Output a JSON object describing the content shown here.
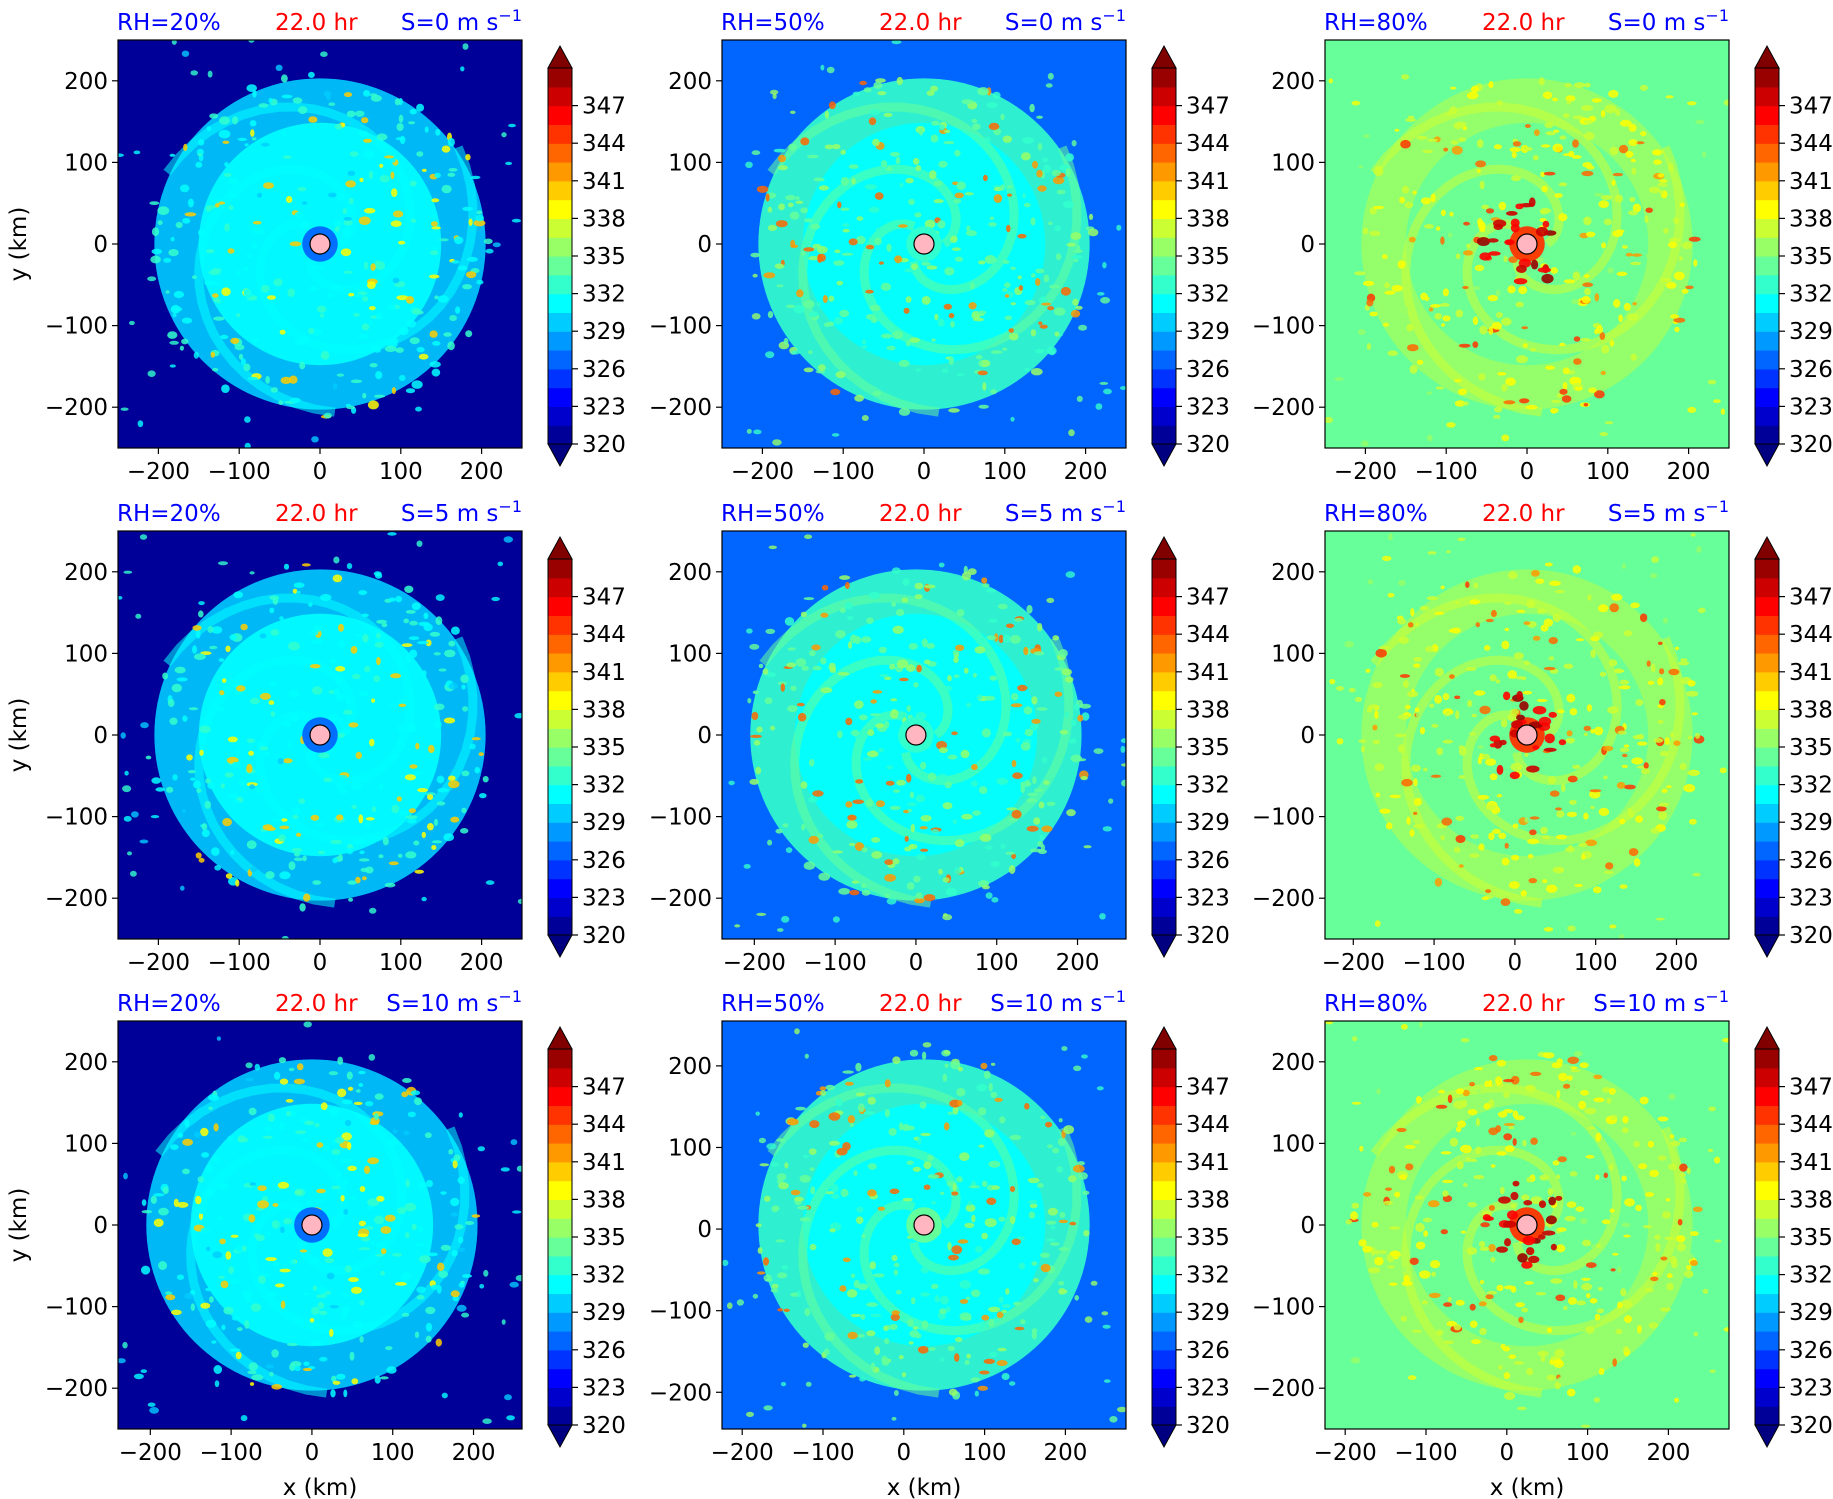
{
  "figure": {
    "colors": {
      "label_blue": "#0000ff",
      "label_red": "#ff0000",
      "center_marker_fill": "#ffb6c1"
    },
    "colormap": "jet",
    "colorbar": {
      "levels": [
        320,
        323,
        326,
        329,
        332,
        335,
        338,
        341,
        344,
        347
      ],
      "range": [
        320,
        350
      ],
      "extend": "both"
    },
    "xlabel": "x (km)",
    "ylabel": "y (km)"
  },
  "chart_data": [
    {
      "type": "heatmap",
      "rh_label": "RH=20%",
      "time_label": "22.0 hr",
      "shear_label": "S=0 m s",
      "shear_sup": "−1",
      "xlabel": "",
      "ylabel": "y (km)",
      "xlim": [
        -250,
        250
      ],
      "ylim": [
        -250,
        250
      ],
      "xticks": [
        -200,
        -100,
        0,
        100,
        200
      ],
      "yticks": [
        -200,
        -100,
        0,
        100,
        200
      ],
      "xtick_labels": [
        "−200",
        "−100",
        "0",
        "100",
        "200"
      ],
      "ytick_labels": [
        "−200",
        "−100",
        "0",
        "100",
        "200"
      ],
      "center": [
        0,
        0
      ],
      "background_value": 320,
      "ring_value": 329.5,
      "inner_value": 330.5,
      "core_value": 326,
      "hot_value": 338
    },
    {
      "type": "heatmap",
      "rh_label": "RH=50%",
      "time_label": "22.0 hr",
      "shear_label": "S=0 m s",
      "shear_sup": "−1",
      "xlabel": "",
      "ylabel": "",
      "xlim": [
        -250,
        250
      ],
      "ylim": [
        -250,
        250
      ],
      "xticks": [
        -200,
        -100,
        0,
        100,
        200
      ],
      "yticks": [
        -200,
        -100,
        0,
        100,
        200
      ],
      "xtick_labels": [
        "−200",
        "−100",
        "0",
        "100",
        "200"
      ],
      "ytick_labels": [
        "−200",
        "−100",
        "0",
        "100",
        "200"
      ],
      "center": [
        0,
        0
      ],
      "background_value": 326.5,
      "ring_value": 332,
      "inner_value": 331,
      "core_value": 332,
      "hot_value": 341
    },
    {
      "type": "heatmap",
      "rh_label": "RH=80%",
      "time_label": "22.0 hr",
      "shear_label": "S=0 m s",
      "shear_sup": "−1",
      "xlabel": "",
      "ylabel": "",
      "xlim": [
        -250,
        250
      ],
      "ylim": [
        -250,
        250
      ],
      "xticks": [
        -200,
        -100,
        0,
        100,
        200
      ],
      "yticks": [
        -200,
        -100,
        0,
        100,
        200
      ],
      "xtick_labels": [
        "−200",
        "−100",
        "0",
        "100",
        "200"
      ],
      "ytick_labels": [
        "−200",
        "−100",
        "0",
        "100",
        "200"
      ],
      "center": [
        0,
        0
      ],
      "background_value": 334,
      "ring_value": 335.5,
      "inner_value": 333.5,
      "core_value": 344,
      "hot_value": 342
    },
    {
      "type": "heatmap",
      "rh_label": "RH=20%",
      "time_label": "22.0 hr",
      "shear_label": "S=5 m s",
      "shear_sup": "−1",
      "xlabel": "",
      "ylabel": "y (km)",
      "xlim": [
        -250,
        250
      ],
      "ylim": [
        -250,
        250
      ],
      "xticks": [
        -200,
        -100,
        0,
        100,
        200
      ],
      "yticks": [
        -200,
        -100,
        0,
        100,
        200
      ],
      "xtick_labels": [
        "−200",
        "−100",
        "0",
        "100",
        "200"
      ],
      "ytick_labels": [
        "−200",
        "−100",
        "0",
        "100",
        "200"
      ],
      "center": [
        0,
        0
      ],
      "background_value": 320,
      "ring_value": 329.5,
      "inner_value": 330.5,
      "core_value": 326,
      "hot_value": 338
    },
    {
      "type": "heatmap",
      "rh_label": "RH=50%",
      "time_label": "22.0 hr",
      "shear_label": "S=5 m s",
      "shear_sup": "−1",
      "xlabel": "",
      "ylabel": "",
      "xlim": [
        -240,
        260
      ],
      "ylim": [
        -250,
        250
      ],
      "xticks": [
        -200,
        -100,
        0,
        100,
        200
      ],
      "yticks": [
        -200,
        -100,
        0,
        100,
        200
      ],
      "xtick_labels": [
        "−200",
        "−100",
        "0",
        "100",
        "200"
      ],
      "ytick_labels": [
        "−200",
        "−100",
        "0",
        "100",
        "200"
      ],
      "center": [
        0,
        0
      ],
      "background_value": 326.5,
      "ring_value": 332,
      "inner_value": 331,
      "core_value": 332,
      "hot_value": 341
    },
    {
      "type": "heatmap",
      "rh_label": "RH=80%",
      "time_label": "22.0 hr",
      "shear_label": "S=5 m s",
      "shear_sup": "−1",
      "xlabel": "",
      "ylabel": "",
      "xlim": [
        -235,
        265
      ],
      "ylim": [
        -250,
        250
      ],
      "xticks": [
        -200,
        -100,
        0,
        100,
        200
      ],
      "yticks": [
        -200,
        -100,
        0,
        100,
        200
      ],
      "xtick_labels": [
        "−200",
        "−100",
        "0",
        "100",
        "200"
      ],
      "ytick_labels": [
        "−200",
        "−100",
        "0",
        "100",
        "200"
      ],
      "center": [
        15,
        0
      ],
      "background_value": 334,
      "ring_value": 335.5,
      "inner_value": 333.5,
      "core_value": 344,
      "hot_value": 342
    },
    {
      "type": "heatmap",
      "rh_label": "RH=20%",
      "time_label": "22.0 hr",
      "shear_label": "S=10 m s",
      "shear_sup": "−1",
      "xlabel": "x (km)",
      "ylabel": "y (km)",
      "xlim": [
        -240,
        260
      ],
      "ylim": [
        -250,
        250
      ],
      "xticks": [
        -200,
        -100,
        0,
        100,
        200
      ],
      "yticks": [
        -200,
        -100,
        0,
        100,
        200
      ],
      "xtick_labels": [
        "−200",
        "−100",
        "0",
        "100",
        "200"
      ],
      "ytick_labels": [
        "−200",
        "−100",
        "0",
        "100",
        "200"
      ],
      "center": [
        0,
        0
      ],
      "background_value": 320,
      "ring_value": 329.5,
      "inner_value": 330.5,
      "core_value": 326,
      "hot_value": 338
    },
    {
      "type": "heatmap",
      "rh_label": "RH=50%",
      "time_label": "22.0 hr",
      "shear_label": "S=10 m s",
      "shear_sup": "−1",
      "xlabel": "x (km)",
      "ylabel": "",
      "xlim": [
        -225,
        275
      ],
      "ylim": [
        -245,
        255
      ],
      "xticks": [
        -200,
        -100,
        0,
        100,
        200
      ],
      "yticks": [
        -200,
        -100,
        0,
        100,
        200
      ],
      "xtick_labels": [
        "−200",
        "−100",
        "0",
        "100",
        "200"
      ],
      "ytick_labels": [
        "−200",
        "−100",
        "0",
        "100",
        "200"
      ],
      "center": [
        25,
        5
      ],
      "background_value": 326.5,
      "ring_value": 332,
      "inner_value": 331,
      "core_value": 334,
      "hot_value": 341
    },
    {
      "type": "heatmap",
      "rh_label": "RH=80%",
      "time_label": "22.0 hr",
      "shear_label": "S=10 m s",
      "shear_sup": "−1",
      "xlabel": "x (km)",
      "ylabel": "",
      "xlim": [
        -225,
        275
      ],
      "ylim": [
        -250,
        250
      ],
      "xticks": [
        -200,
        -100,
        0,
        100,
        200
      ],
      "yticks": [
        -200,
        -100,
        0,
        100,
        200
      ],
      "xtick_labels": [
        "−200",
        "−100",
        "0",
        "100",
        "200"
      ],
      "ytick_labels": [
        "−200",
        "−100",
        "0",
        "100",
        "200"
      ],
      "center": [
        25,
        0
      ],
      "background_value": 334,
      "ring_value": 335.5,
      "inner_value": 333.5,
      "core_value": 344,
      "hot_value": 342
    }
  ]
}
